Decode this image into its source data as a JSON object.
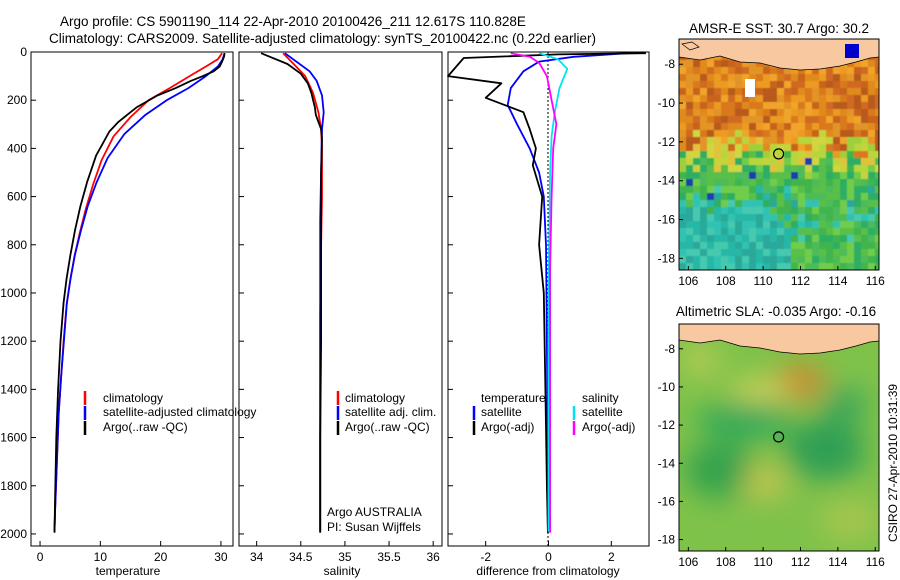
{
  "header": {
    "line1": "Argo profile: CS 5901190_114 22-Apr-2010 20100426_211 12.617S 110.828E",
    "line2": "Climatology: CARS2009. Satellite-adjusted climatology: synTS_20100422.nc (0.22d earlier)"
  },
  "side_stamp": "CSIRO 27-Apr-2010 10:31:39",
  "colors": {
    "climatology": "#ff0000",
    "satellite": "#0000ff",
    "argo": "#000000",
    "salinity_satellite": "#00e5ee",
    "salinity_argo": "#ff00ff",
    "land": "#f8c8a0"
  },
  "chart_data": [
    {
      "id": "temperature",
      "type": "line",
      "xlabel": "temperature",
      "ylabel": "",
      "xlim": [
        -1.5,
        32
      ],
      "ylim": [
        2050,
        0
      ],
      "y_inverted": true,
      "xticks": [
        0,
        10,
        20,
        30
      ],
      "yticks": [
        0,
        200,
        400,
        600,
        800,
        1000,
        1200,
        1400,
        1600,
        1800,
        2000
      ],
      "legend": {
        "position": "bottom-right",
        "entries": [
          "climatology",
          "satellite-adjusted climatology",
          "Argo(..raw -QC)"
        ]
      },
      "series": [
        {
          "name": "climatology",
          "color": "#ff0000",
          "x": [
            30.2,
            29.5,
            27.5,
            24.8,
            21.5,
            18,
            15,
            12.2,
            10.2,
            8.8,
            7.6,
            6.6,
            5.7,
            5,
            4.4,
            3.9,
            3.5,
            3.1,
            2.8,
            2.5,
            2.4
          ],
          "y": [
            5,
            30,
            60,
            100,
            150,
            200,
            270,
            350,
            450,
            550,
            650,
            750,
            850,
            950,
            1050,
            1200,
            1350,
            1500,
            1700,
            1900,
            1990
          ]
        },
        {
          "name": "satellite-adjusted climatology",
          "color": "#0000ff",
          "x": [
            30.6,
            30.3,
            29.5,
            27.5,
            24.6,
            21,
            17.5,
            14,
            11.2,
            9.4,
            7.9,
            6.8,
            5.8,
            5.05,
            4.45,
            3.95,
            3.5,
            3.1,
            2.8,
            2.5,
            2.4
          ],
          "y": [
            5,
            30,
            60,
            100,
            150,
            200,
            260,
            340,
            440,
            540,
            640,
            740,
            840,
            940,
            1040,
            1200,
            1350,
            1500,
            1700,
            1900,
            1990
          ]
        },
        {
          "name": "Argo(..raw -QC)",
          "color": "#000000",
          "x": [
            30.6,
            30.5,
            30.2,
            29.8,
            28.8,
            27,
            25,
            22.5,
            19.5,
            16,
            13,
            11.5,
            9.3,
            7.8,
            6.7,
            5.8,
            5.05,
            4.4,
            3.9,
            3.4,
            3,
            2.7,
            2.5,
            2.4
          ],
          "y": [
            5,
            20,
            40,
            60,
            80,
            100,
            120,
            150,
            180,
            230,
            290,
            330,
            430,
            540,
            640,
            740,
            840,
            940,
            1040,
            1200,
            1400,
            1600,
            1850,
            1995
          ]
        }
      ]
    },
    {
      "id": "salinity",
      "type": "line",
      "xlabel": "salinity",
      "ylabel": "",
      "xlim": [
        33.8,
        36.1
      ],
      "ylim": [
        2050,
        0
      ],
      "y_inverted": true,
      "xticks": [
        34,
        34.5,
        35,
        35.5,
        36
      ],
      "yticks": [
        0,
        200,
        400,
        600,
        800,
        1000,
        1200,
        1400,
        1600,
        1800,
        2000
      ],
      "legend": {
        "position": "bottom-right",
        "entries": [
          "climatology",
          "satellite adj. clim.",
          "Argo(..raw -QC)"
        ]
      },
      "annotations": [
        "Argo AUSTRALIA",
        "PI: Susan Wijffels"
      ],
      "series": [
        {
          "name": "climatology",
          "color": "#ff0000",
          "x": [
            34.3,
            34.42,
            34.55,
            34.64,
            34.7,
            34.73,
            34.74,
            34.74,
            34.73,
            34.72,
            34.72,
            34.72,
            34.72
          ],
          "y": [
            5,
            50,
            100,
            170,
            250,
            320,
            400,
            600,
            800,
            1100,
            1400,
            1700,
            1990
          ]
        },
        {
          "name": "satellite adj. clim.",
          "color": "#0000ff",
          "x": [
            34.32,
            34.45,
            34.6,
            34.68,
            34.74,
            34.76,
            34.74,
            34.73,
            34.72,
            34.72,
            34.72,
            34.72,
            34.72
          ],
          "y": [
            5,
            40,
            80,
            120,
            180,
            250,
            320,
            500,
            700,
            1000,
            1300,
            1600,
            1990
          ]
        },
        {
          "name": "Argo(..raw -QC)",
          "color": "#000000",
          "x": [
            34.05,
            34.15,
            34.35,
            34.5,
            34.58,
            34.62,
            34.64,
            34.66,
            34.67,
            34.7,
            34.73,
            34.74,
            34.73,
            34.73,
            34.73,
            34.72,
            34.72
          ],
          "y": [
            5,
            20,
            50,
            90,
            130,
            170,
            200,
            230,
            260,
            290,
            320,
            360,
            500,
            800,
            1200,
            1600,
            1995
          ]
        }
      ]
    },
    {
      "id": "difference",
      "type": "line",
      "xlabel": "difference from climatology",
      "ylabel": "",
      "xlim": [
        -3.2,
        3.2
      ],
      "ylim": [
        2050,
        0
      ],
      "y_inverted": true,
      "xticks": [
        -2,
        0,
        2
      ],
      "yticks": [
        0,
        200,
        400,
        600,
        800,
        1000,
        1200,
        1400,
        1600,
        1800,
        2000
      ],
      "legend": {
        "position": "bottom",
        "groups": [
          {
            "title": "temperature",
            "entries": [
              "satellite",
              "Argo(-adj)"
            ]
          },
          {
            "title": "salinity",
            "entries": [
              "satellite",
              "Argo(-adj)"
            ]
          }
        ]
      },
      "series": [
        {
          "name": "satellite",
          "group": "temperature",
          "color": "#0000ff",
          "x": [
            2.5,
            0.8,
            -0.3,
            -0.8,
            -1.2,
            -1.3,
            -1.0,
            -0.6,
            -0.3,
            -0.15,
            -0.08,
            -0.05,
            -0.03,
            -0.02
          ],
          "y": [
            5,
            20,
            40,
            80,
            150,
            220,
            300,
            400,
            500,
            600,
            800,
            1200,
            1600,
            1990
          ]
        },
        {
          "name": "Argo(-adj)",
          "group": "temperature",
          "color": "#000000",
          "x": [
            3.1,
            0.3,
            -2.7,
            -3.2,
            -1.5,
            -2.0,
            -0.8,
            -0.6,
            -0.4,
            -0.5,
            -0.2,
            -0.3,
            -0.15,
            -0.1,
            -0.05,
            -0.02
          ],
          "y": [
            5,
            10,
            25,
            100,
            130,
            190,
            250,
            320,
            400,
            470,
            600,
            800,
            1000,
            1400,
            1800,
            1995
          ]
        },
        {
          "name": "satellite",
          "group": "salinity",
          "color": "#00e5ee",
          "x": [
            -0.3,
            0.3,
            0.6,
            0.35,
            0.2,
            0.1,
            0.05,
            0.02,
            0.0,
            0.0,
            0.0
          ],
          "y": [
            5,
            30,
            70,
            150,
            250,
            350,
            500,
            800,
            1200,
            1600,
            1990
          ]
        },
        {
          "name": "Argo(-adj)",
          "group": "salinity",
          "color": "#ff00ff",
          "x": [
            -1.2,
            -0.6,
            -0.3,
            -0.05,
            0.1,
            0.25,
            0.15,
            0.1,
            0.05,
            0.05,
            0.05,
            0.05
          ],
          "y": [
            5,
            20,
            45,
            100,
            200,
            300,
            400,
            600,
            900,
            1300,
            1700,
            1995
          ]
        }
      ]
    },
    {
      "id": "sst_map",
      "type": "heatmap",
      "title": "AMSR-E SST: 30.7  Argo: 30.2",
      "xlim": [
        105.5,
        116.2
      ],
      "ylim": [
        -18.6,
        -6.7
      ],
      "xticks": [
        106,
        108,
        110,
        112,
        114,
        116
      ],
      "yticks": [
        -8,
        -10,
        -12,
        -14,
        -16,
        -18
      ],
      "marker": {
        "lon": 110.83,
        "lat": -12.62
      }
    },
    {
      "id": "sla_map",
      "type": "heatmap",
      "title": "Altimetric SLA: -0.035  Argo: -0.16",
      "xlim": [
        105.5,
        116.2
      ],
      "ylim": [
        -18.6,
        -6.7
      ],
      "xticks": [
        106,
        108,
        110,
        112,
        114,
        116
      ],
      "yticks": [
        -8,
        -10,
        -12,
        -14,
        -16,
        -18
      ],
      "marker": {
        "lon": 110.83,
        "lat": -12.62
      }
    }
  ]
}
